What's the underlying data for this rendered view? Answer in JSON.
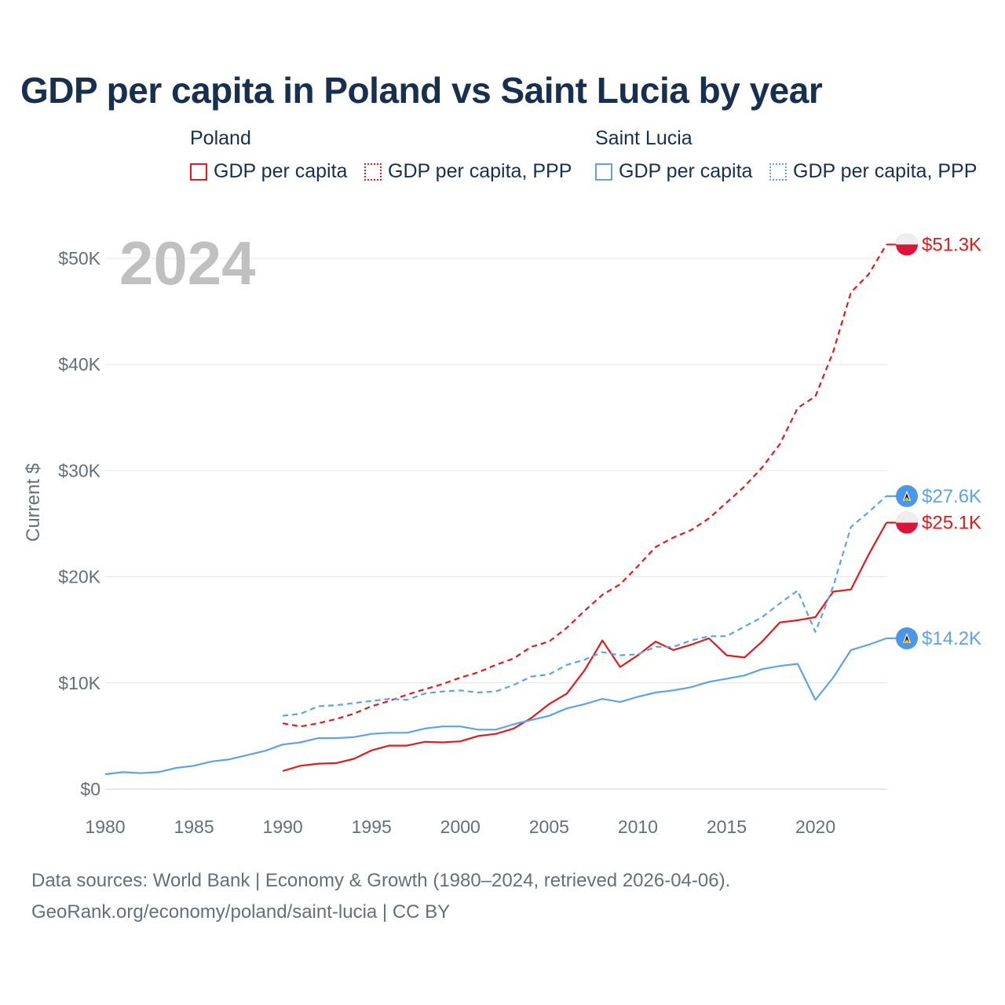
{
  "title": "GDP per capita in Poland vs Saint Lucia by year",
  "legend": {
    "groups": [
      {
        "name": "Poland",
        "items": [
          "GDP per capita",
          "GDP per capita, PPP"
        ]
      },
      {
        "name": "Saint Lucia",
        "items": [
          "GDP per capita",
          "GDP per capita, PPP"
        ]
      }
    ]
  },
  "footer": {
    "line1": "Data sources: World Bank | Economy & Growth (1980–2024, retrieved 2026-04-06).",
    "line2": "GeoRank.org/economy/poland/saint-lucia | CC BY"
  },
  "chart_data": {
    "type": "line",
    "title": "GDP per capita in Poland vs Saint Lucia by year",
    "ylabel": "Current $",
    "xlabel": "",
    "year_label": "2024",
    "xlim": [
      1980,
      2024
    ],
    "ylim": [
      0,
      52000
    ],
    "y_ticks": [
      0,
      10000,
      20000,
      30000,
      40000,
      50000
    ],
    "y_tick_labels": [
      "$0",
      "$10K",
      "$20K",
      "$30K",
      "$40K",
      "$50K"
    ],
    "x_ticks": [
      1980,
      1985,
      1990,
      1995,
      2000,
      2005,
      2010,
      2015,
      2020
    ],
    "x_tick_labels": [
      "1980",
      "1985",
      "1990",
      "1995",
      "2000",
      "2005",
      "2010",
      "2015",
      "2020"
    ],
    "series": [
      {
        "name": "Poland GDP per capita",
        "country": "Poland",
        "style": "solid",
        "color": "#e31a1c",
        "start_year": 1990,
        "values": [
          1700,
          2200,
          2400,
          2450,
          2850,
          3650,
          4100,
          4100,
          4450,
          4400,
          4500,
          5000,
          5200,
          5700,
          6700,
          8000,
          9000,
          11200,
          14000,
          11500,
          12600,
          13900,
          13100,
          13600,
          14200,
          12600,
          12400,
          13900,
          15700,
          15900,
          16200,
          18600,
          18800,
          22100,
          25100
        ],
        "end_label": "$25.1K"
      },
      {
        "name": "Poland GDP per capita, PPP",
        "country": "Poland",
        "style": "dashed",
        "color": "#e31a1c",
        "start_year": 1990,
        "values": [
          6200,
          5900,
          6200,
          6600,
          7100,
          7800,
          8300,
          8900,
          9400,
          9900,
          10500,
          11000,
          11700,
          12300,
          13400,
          13900,
          15200,
          16800,
          18300,
          19300,
          21000,
          22800,
          23700,
          24400,
          25500,
          27000,
          28500,
          30300,
          32500,
          35900,
          37000,
          41200,
          46800,
          48500,
          51300
        ],
        "end_label": "$51.3K"
      },
      {
        "name": "Saint Lucia GDP per capita",
        "country": "Saint Lucia",
        "style": "solid",
        "color": "#5fa2e6",
        "start_year": 1980,
        "values": [
          1400,
          1600,
          1500,
          1600,
          2000,
          2200,
          2600,
          2800,
          3200,
          3600,
          4200,
          4400,
          4800,
          4800,
          4900,
          5200,
          5300,
          5300,
          5700,
          5900,
          5900,
          5600,
          5600,
          6100,
          6500,
          6900,
          7600,
          8000,
          8500,
          8200,
          8700,
          9100,
          9300,
          9600,
          10100,
          10400,
          10700,
          11300,
          11600,
          11800,
          8400,
          10500,
          13100,
          13600,
          14200
        ],
        "end_label": "$14.2K"
      },
      {
        "name": "Saint Lucia GDP per capita, PPP",
        "country": "Saint Lucia",
        "style": "dashed",
        "color": "#5fa2e6",
        "start_year": 1990,
        "values": [
          6900,
          7100,
          7800,
          7900,
          8100,
          8300,
          8500,
          8400,
          9000,
          9200,
          9300,
          9100,
          9200,
          9800,
          10600,
          10800,
          11700,
          12200,
          12900,
          12600,
          12700,
          13400,
          13400,
          14000,
          14400,
          14400,
          15300,
          16200,
          17500,
          18700,
          14800,
          19100,
          24700,
          26100,
          27600
        ],
        "end_label": "$27.6K"
      }
    ]
  }
}
